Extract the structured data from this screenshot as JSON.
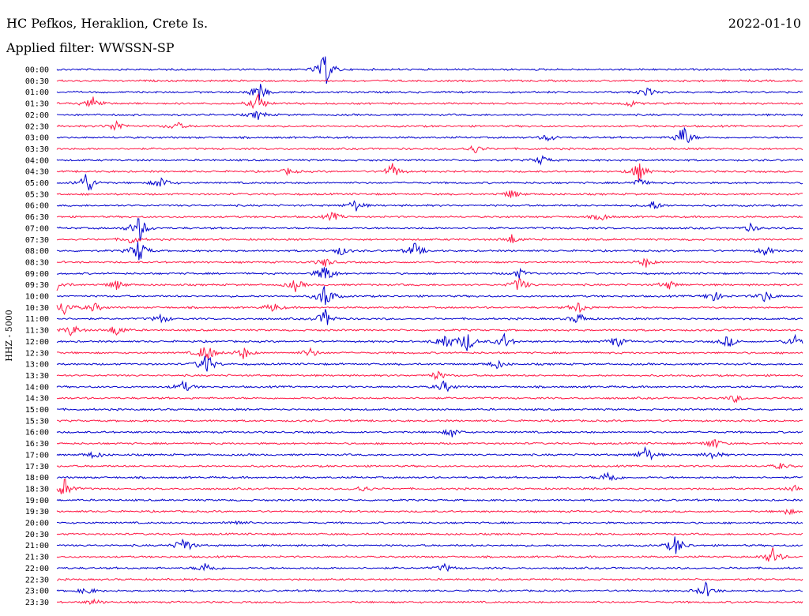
{
  "header": {
    "station": "HC Pefkos, Heraklion, Crete Is.",
    "date": "2022-01-10",
    "filter": "Applied filter: WWSSN-SP"
  },
  "chart_data": {
    "type": "line",
    "ylabel": "HHZ - 5000",
    "colors": {
      "even": "#0000cc",
      "odd": "#ff1744"
    },
    "rows": [
      {
        "label": "00:00",
        "events": [
          [
            0.36,
            22
          ]
        ]
      },
      {
        "label": "00:30",
        "events": []
      },
      {
        "label": "01:00",
        "events": [
          [
            0.27,
            14
          ],
          [
            0.79,
            6
          ]
        ]
      },
      {
        "label": "01:30",
        "events": [
          [
            0.05,
            10
          ],
          [
            0.27,
            12
          ],
          [
            0.77,
            4
          ]
        ]
      },
      {
        "label": "02:00",
        "events": [
          [
            0.27,
            6
          ]
        ]
      },
      {
        "label": "02:30",
        "events": [
          [
            0.08,
            8
          ],
          [
            0.16,
            6
          ]
        ]
      },
      {
        "label": "03:00",
        "events": [
          [
            0.66,
            5
          ],
          [
            0.84,
            16
          ]
        ]
      },
      {
        "label": "03:30",
        "events": [
          [
            0.56,
            6
          ]
        ]
      },
      {
        "label": "04:00",
        "events": [
          [
            0.65,
            6
          ]
        ]
      },
      {
        "label": "04:30",
        "events": [
          [
            0.31,
            4
          ],
          [
            0.45,
            10
          ],
          [
            0.78,
            12
          ]
        ]
      },
      {
        "label": "05:00",
        "events": [
          [
            0.04,
            16
          ],
          [
            0.14,
            8
          ],
          [
            0.78,
            6
          ]
        ]
      },
      {
        "label": "05:30",
        "events": [
          [
            0.61,
            6
          ]
        ]
      },
      {
        "label": "06:00",
        "events": [
          [
            0.4,
            8
          ],
          [
            0.8,
            6
          ]
        ]
      },
      {
        "label": "06:30",
        "events": [
          [
            0.37,
            6
          ],
          [
            0.73,
            5
          ]
        ]
      },
      {
        "label": "07:00",
        "events": [
          [
            0.11,
            18
          ],
          [
            0.93,
            5
          ]
        ]
      },
      {
        "label": "07:30",
        "events": [
          [
            0.1,
            6
          ],
          [
            0.61,
            6
          ]
        ]
      },
      {
        "label": "08:00",
        "events": [
          [
            0.11,
            16
          ],
          [
            0.38,
            6
          ],
          [
            0.48,
            10
          ],
          [
            0.95,
            6
          ]
        ]
      },
      {
        "label": "08:30",
        "events": [
          [
            0.36,
            6
          ],
          [
            0.79,
            6
          ]
        ]
      },
      {
        "label": "09:00",
        "events": [
          [
            0.36,
            14
          ],
          [
            0.62,
            6
          ]
        ]
      },
      {
        "label": "09:30",
        "events": [
          [
            0.0,
            8
          ],
          [
            0.08,
            6
          ],
          [
            0.32,
            8
          ],
          [
            0.62,
            10
          ],
          [
            0.82,
            6
          ]
        ]
      },
      {
        "label": "10:00",
        "events": [
          [
            0.36,
            18
          ],
          [
            0.88,
            8
          ],
          [
            0.95,
            8
          ]
        ]
      },
      {
        "label": "10:30",
        "events": [
          [
            0.01,
            10
          ],
          [
            0.05,
            6
          ],
          [
            0.29,
            6
          ],
          [
            0.7,
            8
          ]
        ]
      },
      {
        "label": "11:00",
        "events": [
          [
            0.14,
            6
          ],
          [
            0.36,
            12
          ],
          [
            0.7,
            8
          ]
        ]
      },
      {
        "label": "11:30",
        "events": [
          [
            0.02,
            8
          ],
          [
            0.08,
            8
          ]
        ]
      },
      {
        "label": "12:00",
        "events": [
          [
            0.52,
            12
          ],
          [
            0.55,
            14
          ],
          [
            0.6,
            10
          ],
          [
            0.75,
            8
          ],
          [
            0.9,
            8
          ],
          [
            0.99,
            10
          ]
        ]
      },
      {
        "label": "12:30",
        "events": [
          [
            0.2,
            14
          ],
          [
            0.25,
            8
          ],
          [
            0.34,
            6
          ]
        ]
      },
      {
        "label": "13:00",
        "events": [
          [
            0.2,
            16
          ],
          [
            0.59,
            6
          ]
        ]
      },
      {
        "label": "13:30",
        "events": [
          [
            0.51,
            6
          ]
        ]
      },
      {
        "label": "14:00",
        "events": [
          [
            0.17,
            8
          ],
          [
            0.52,
            8
          ]
        ]
      },
      {
        "label": "14:30",
        "events": [
          [
            0.91,
            5
          ]
        ]
      },
      {
        "label": "15:00",
        "events": []
      },
      {
        "label": "15:30",
        "events": []
      },
      {
        "label": "16:00",
        "events": [
          [
            0.53,
            6
          ]
        ]
      },
      {
        "label": "16:30",
        "events": [
          [
            0.88,
            8
          ]
        ]
      },
      {
        "label": "17:00",
        "events": [
          [
            0.05,
            5
          ],
          [
            0.79,
            12
          ],
          [
            0.88,
            6
          ]
        ]
      },
      {
        "label": "17:30",
        "events": [
          [
            0.97,
            4
          ]
        ]
      },
      {
        "label": "18:00",
        "events": [
          [
            0.74,
            10
          ]
        ]
      },
      {
        "label": "18:30",
        "events": [
          [
            0.01,
            14
          ],
          [
            0.41,
            5
          ],
          [
            0.99,
            4
          ]
        ]
      },
      {
        "label": "19:00",
        "events": []
      },
      {
        "label": "19:30",
        "events": [
          [
            0.98,
            4
          ]
        ]
      },
      {
        "label": "20:00",
        "events": [
          [
            0.24,
            4
          ]
        ]
      },
      {
        "label": "20:30",
        "events": []
      },
      {
        "label": "21:00",
        "events": [
          [
            0.17,
            12
          ],
          [
            0.83,
            14
          ]
        ]
      },
      {
        "label": "21:30",
        "events": [
          [
            0.96,
            12
          ]
        ]
      },
      {
        "label": "22:00",
        "events": [
          [
            0.2,
            8
          ],
          [
            0.52,
            5
          ]
        ]
      },
      {
        "label": "22:30",
        "events": []
      },
      {
        "label": "23:00",
        "events": [
          [
            0.04,
            5
          ],
          [
            0.87,
            10
          ]
        ]
      },
      {
        "label": "23:30",
        "events": [
          [
            0.05,
            4
          ]
        ]
      }
    ]
  }
}
